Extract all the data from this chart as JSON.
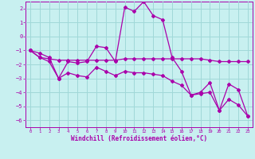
{
  "xlabel": "Windchill (Refroidissement éolien,°C)",
  "ylabel": "",
  "background_color": "#c8f0f0",
  "grid_color": "#a0d8d8",
  "line_color": "#aa00aa",
  "xlim": [
    -0.5,
    23.5
  ],
  "ylim": [
    -6.5,
    2.5
  ],
  "xticks": [
    0,
    1,
    2,
    3,
    4,
    5,
    6,
    7,
    8,
    9,
    10,
    11,
    12,
    13,
    14,
    15,
    16,
    17,
    18,
    19,
    20,
    21,
    22,
    23
  ],
  "yticks": [
    -6,
    -5,
    -4,
    -3,
    -2,
    -1,
    0,
    1,
    2
  ],
  "line1_x": [
    0,
    1,
    2,
    3,
    4,
    5,
    6,
    7,
    8,
    9,
    10,
    11,
    12,
    13,
    14,
    15,
    16,
    17,
    18,
    19,
    20,
    21,
    22,
    23
  ],
  "line1_y": [
    -1.0,
    -1.2,
    -1.5,
    -3.0,
    -1.8,
    -1.9,
    -1.8,
    -0.7,
    -0.8,
    -1.8,
    2.1,
    1.8,
    2.5,
    1.5,
    1.2,
    -1.5,
    -2.5,
    -4.2,
    -4.0,
    -3.3,
    -5.3,
    -3.4,
    -3.8,
    -5.7
  ],
  "line2_x": [
    0,
    1,
    2,
    3,
    4,
    5,
    6,
    7,
    8,
    9,
    10,
    11,
    12,
    13,
    14,
    15,
    16,
    17,
    18,
    19,
    20,
    21,
    22,
    23
  ],
  "line2_y": [
    -1.0,
    -1.5,
    -1.6,
    -1.7,
    -1.7,
    -1.7,
    -1.7,
    -1.7,
    -1.7,
    -1.7,
    -1.6,
    -1.6,
    -1.6,
    -1.6,
    -1.6,
    -1.6,
    -1.6,
    -1.6,
    -1.6,
    -1.7,
    -1.8,
    -1.8,
    -1.8,
    -1.8
  ],
  "line3_x": [
    0,
    1,
    2,
    3,
    4,
    5,
    6,
    7,
    8,
    9,
    10,
    11,
    12,
    13,
    14,
    15,
    16,
    17,
    18,
    19,
    20,
    21,
    22,
    23
  ],
  "line3_y": [
    -1.0,
    -1.5,
    -1.8,
    -3.0,
    -2.6,
    -2.8,
    -2.9,
    -2.2,
    -2.5,
    -2.8,
    -2.5,
    -2.6,
    -2.6,
    -2.7,
    -2.8,
    -3.2,
    -3.5,
    -4.2,
    -4.1,
    -4.0,
    -5.3,
    -4.5,
    -4.9,
    -5.7
  ]
}
